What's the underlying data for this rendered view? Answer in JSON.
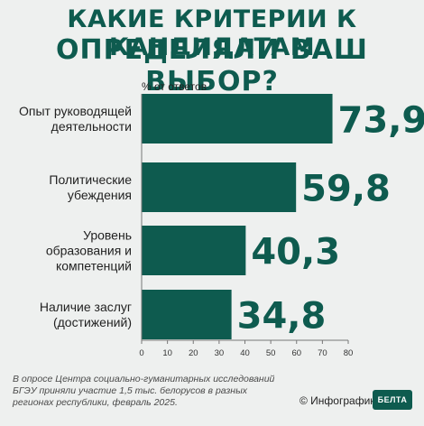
{
  "title_line1": "КАКИЕ КРИТЕРИИ К КАНДИДАТАМ",
  "title_line2": "ОПРЕДЕЛЯЛИ ВАШ ВЫБОР?",
  "note": "В опросе Центра социально-гуманитарных исследований БГЭУ приняли участие 1,5 тыс. белорусов в разных регионах республики, февраль 2025.",
  "credit": "© Инфографика",
  "logo_text": "БЕЛТА",
  "colors": {
    "bar": "#0e5b4f",
    "background": "#eef0ef"
  },
  "chart_data": {
    "type": "bar",
    "orientation": "horizontal",
    "axis_title": "% от ответов",
    "categories": [
      "Опыт руководящей\nдеятельности",
      "Политические\nубеждения",
      "Уровень\nобразования и\nкомпетенций",
      "Наличие заслуг\n(достижений)"
    ],
    "values": [
      73.9,
      59.8,
      40.3,
      34.8
    ],
    "value_labels": [
      "73,9",
      "59,8",
      "40,3",
      "34,8"
    ],
    "xlim": [
      0,
      80
    ],
    "xticks": [
      0,
      10,
      20,
      30,
      40,
      50,
      60,
      70,
      80
    ],
    "grid": false
  }
}
